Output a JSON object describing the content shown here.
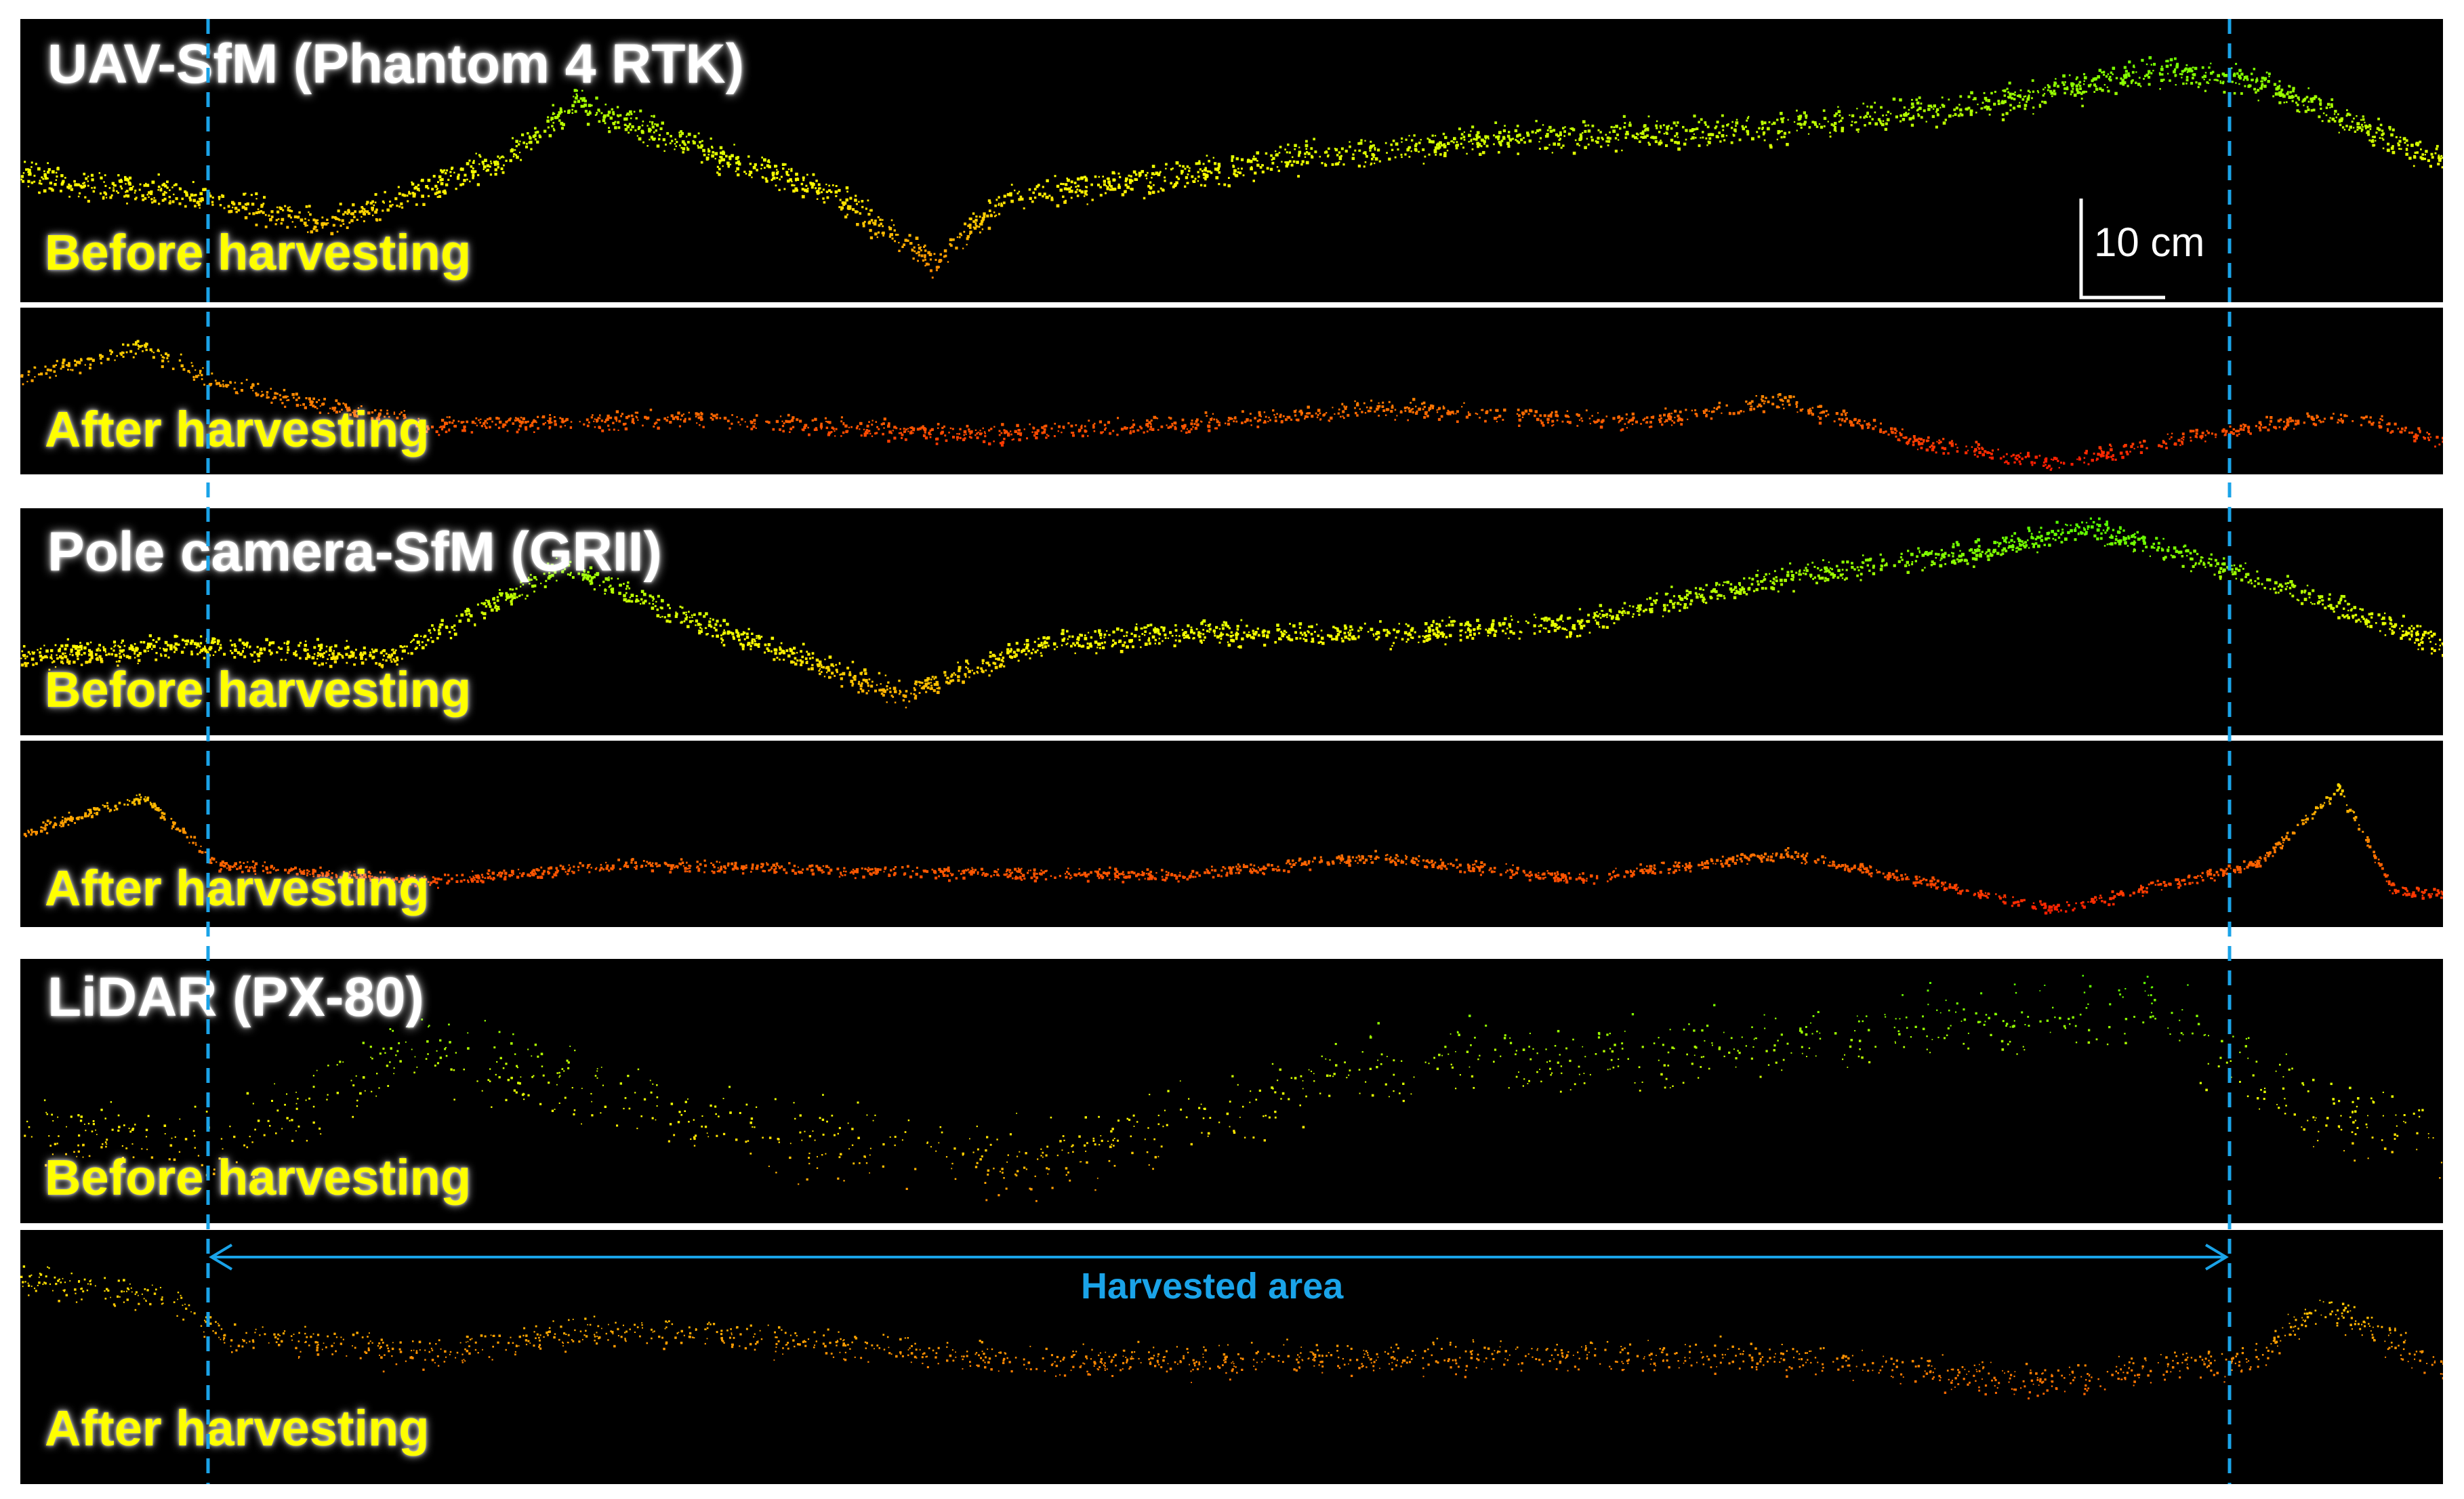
{
  "sections": [
    {
      "title": "UAV-SfM (Phantom 4 RTK)",
      "before_label": "Before harvesting",
      "after_label": "After harvesting"
    },
    {
      "title": "Pole camera-SfM (GRII)",
      "before_label": "Before harvesting",
      "after_label": "After harvesting"
    },
    {
      "title": "LiDAR (PX-80)",
      "before_label": "Before harvesting",
      "after_label": "After harvesting"
    }
  ],
  "scale_bar": {
    "label": "10 cm"
  },
  "harvested_area": {
    "label": "Harvested area"
  },
  "colors": {
    "background": "#000000",
    "label_yellow": "#ffff00",
    "marker_blue": "#1aa3e8",
    "high_green": "#33ff00",
    "mid_yellow": "#e6ff00",
    "mid_orange": "#ff9900",
    "low_red": "#ff1a00"
  }
}
